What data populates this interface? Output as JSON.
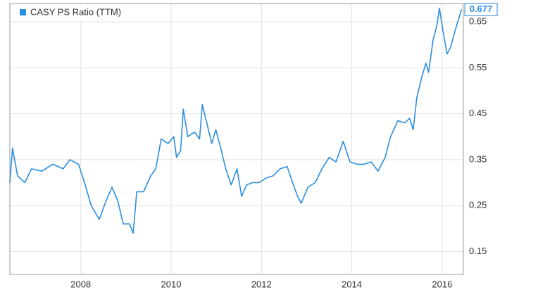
{
  "chart_data": {
    "type": "line",
    "series": [
      {
        "name": "CASY PS Ratio (TTM)",
        "color": "#2b8ee0",
        "x": [
          2006.43,
          2006.49,
          2006.6,
          2006.76,
          2006.91,
          2007.14,
          2007.38,
          2007.61,
          2007.76,
          2007.95,
          2008.1,
          2008.23,
          2008.41,
          2008.54,
          2008.69,
          2008.82,
          2008.94,
          2009.08,
          2009.16,
          2009.24,
          2009.39,
          2009.55,
          2009.66,
          2009.78,
          2009.93,
          2010.06,
          2010.12,
          2010.21,
          2010.27,
          2010.37,
          2010.52,
          2010.63,
          2010.69,
          2010.79,
          2010.9,
          2010.99,
          2011.1,
          2011.21,
          2011.33,
          2011.46,
          2011.56,
          2011.67,
          2011.8,
          2011.95,
          2012.1,
          2012.26,
          2012.41,
          2012.57,
          2012.69,
          2012.8,
          2012.88,
          2013.03,
          2013.19,
          2013.34,
          2013.5,
          2013.65,
          2013.81,
          2013.96,
          2014.12,
          2014.27,
          2014.43,
          2014.58,
          2014.74,
          2014.86,
          2015.02,
          2015.17,
          2015.28,
          2015.36,
          2015.44,
          2015.55,
          2015.64,
          2015.7,
          2015.8,
          2015.89,
          2015.94,
          2016.02,
          2016.11,
          2016.19,
          2016.27,
          2016.33,
          2016.43
        ],
        "values": [
          0.3,
          0.375,
          0.315,
          0.3,
          0.33,
          0.325,
          0.34,
          0.33,
          0.35,
          0.34,
          0.295,
          0.25,
          0.22,
          0.255,
          0.29,
          0.26,
          0.21,
          0.21,
          0.19,
          0.28,
          0.28,
          0.315,
          0.33,
          0.395,
          0.385,
          0.4,
          0.355,
          0.37,
          0.46,
          0.4,
          0.41,
          0.395,
          0.47,
          0.43,
          0.385,
          0.415,
          0.375,
          0.33,
          0.295,
          0.33,
          0.27,
          0.295,
          0.3,
          0.3,
          0.31,
          0.315,
          0.33,
          0.335,
          0.3,
          0.27,
          0.255,
          0.29,
          0.3,
          0.33,
          0.355,
          0.345,
          0.39,
          0.345,
          0.34,
          0.34,
          0.345,
          0.325,
          0.355,
          0.4,
          0.435,
          0.43,
          0.44,
          0.415,
          0.485,
          0.53,
          0.56,
          0.54,
          0.61,
          0.645,
          0.68,
          0.63,
          0.58,
          0.595,
          0.625,
          0.645,
          0.677
        ]
      }
    ],
    "xlim": [
      2006.43,
      2016.47
    ],
    "xticks": [
      2008,
      2010,
      2012,
      2014,
      2016
    ],
    "ylim": [
      0.1,
      0.69
    ],
    "yticks": [
      0.15,
      0.25,
      0.35,
      0.45,
      0.55,
      0.65
    ],
    "grid": true,
    "legend": "top-left"
  }
}
